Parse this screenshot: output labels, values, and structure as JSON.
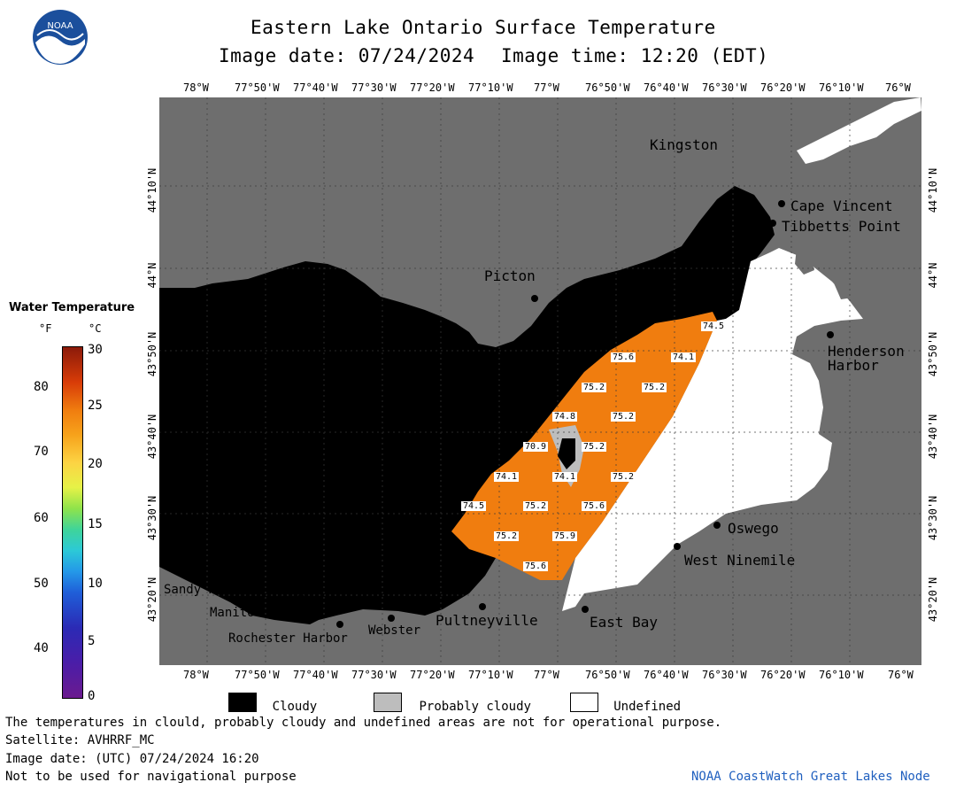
{
  "header": {
    "title": "Eastern Lake Ontario Surface Temperature",
    "image_date": "Image date: 07/24/2024",
    "image_time": "Image time: 12:20 (EDT)",
    "logo_text": "NOAA"
  },
  "longitude_ticks": [
    "78°W",
    "77°50'W",
    "77°40'W",
    "77°30'W",
    "77°20'W",
    "77°10'W",
    "77°W",
    "76°50'W",
    "76°40'W",
    "76°30'W",
    "76°20'W",
    "76°10'W",
    "76°W"
  ],
  "longitude_ticks_top_last": "76°W",
  "latitude_ticks": [
    "44°10'N",
    "44°N",
    "43°50'N",
    "43°40'N",
    "43°30'N",
    "43°20'N"
  ],
  "places": [
    {
      "name": "Kingston"
    },
    {
      "name": "Cape Vincent"
    },
    {
      "name": "Tibbetts Point"
    },
    {
      "name": "Picton"
    },
    {
      "name": "Henderson"
    },
    {
      "name": "Harbor"
    },
    {
      "name": "Oswego"
    },
    {
      "name": "West Ninemile"
    },
    {
      "name": "East Bay"
    },
    {
      "name": "Pultneyville"
    },
    {
      "name": "Webster"
    },
    {
      "name": "Rochester Harbor"
    },
    {
      "name": "Manitou Beach"
    },
    {
      "name": "Sandy Harbour"
    }
  ],
  "temperature_labels": [
    "74.5",
    "75.6",
    "74.1",
    "75.2",
    "75.2",
    "74.8",
    "75.2",
    "70.9",
    "75.2",
    "74.1",
    "74.1",
    "75.2",
    "74.5",
    "75.2",
    "75.6",
    "75.2",
    "75.9",
    "75.6"
  ],
  "colorbar": {
    "title": "Water Temperature",
    "unit_f": "°F",
    "unit_c": "°C",
    "f_ticks": [
      "80",
      "70",
      "60",
      "50",
      "40"
    ],
    "c_ticks": [
      "30",
      "25",
      "20",
      "15",
      "10",
      "5",
      "0"
    ],
    "f_values": [
      80,
      70,
      60,
      50,
      40
    ],
    "c_values": [
      30,
      25,
      20,
      15,
      10,
      5,
      0
    ]
  },
  "legend": {
    "cloudy": "Cloudy",
    "probably_cloudy": "Probably cloudy",
    "undefined": "Undefined"
  },
  "footer": {
    "disclaimer": "The temperatures in clould, probably cloudy and undefined areas are not for operational purpose.",
    "satellite": "Satellite: AVHRRF_MC",
    "utc_date": "Image date: (UTC) 07/24/2024  16:20",
    "navigation": "Not to be used for navigational purpose",
    "credit": "NOAA CoastWatch Great Lakes Node"
  },
  "colors": {
    "land": "#6e6e6e",
    "cloudy": "#000000",
    "probably_cloudy": "#bdbdbd",
    "undefined": "#ffffff",
    "water_warm": "#f07d0f",
    "credit_blue": "#1f5fbf"
  }
}
